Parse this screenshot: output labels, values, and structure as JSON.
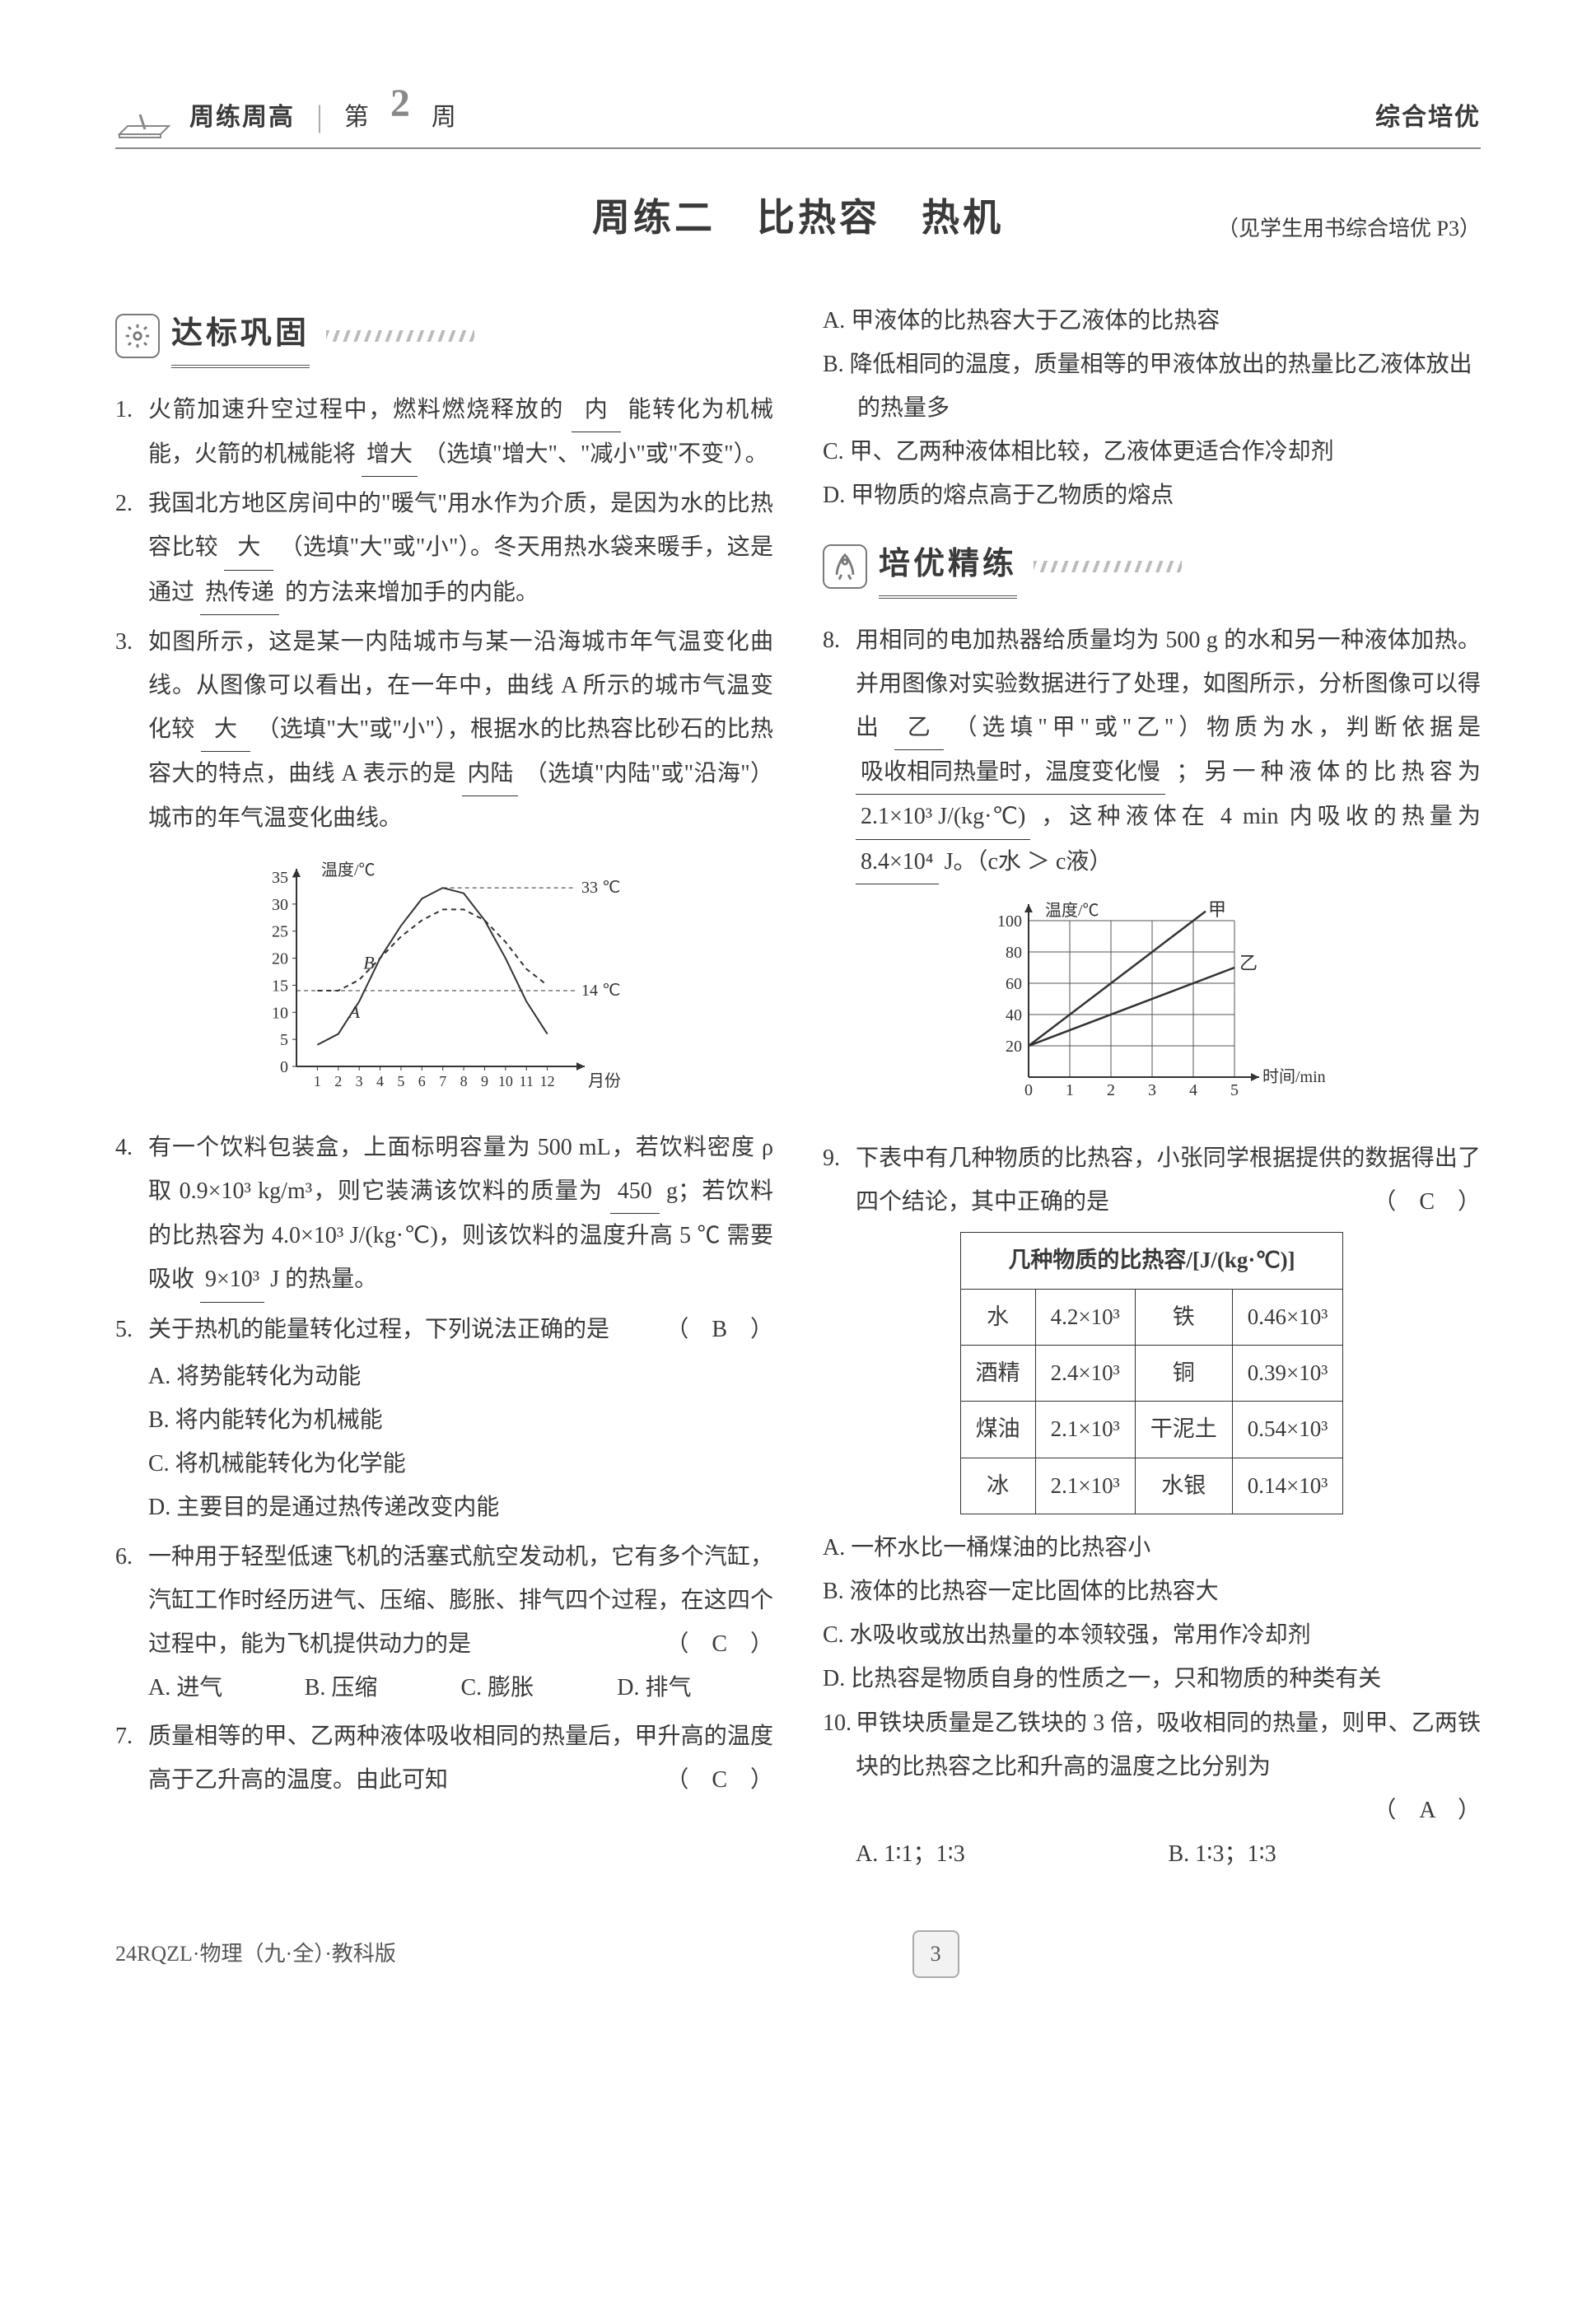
{
  "header": {
    "series": "周练周高",
    "week_prefix": "第",
    "week_number": "2",
    "week_suffix": "周",
    "right": "综合培优"
  },
  "title": {
    "main": "周练二　比热容　热机",
    "ref": "（见学生用书综合培优 P3）"
  },
  "section1": {
    "label": "达标巩固"
  },
  "section2": {
    "label": "培优精练"
  },
  "q1": {
    "num": "1.",
    "t1": "火箭加速升空过程中，燃料燃烧释放的",
    "b1": "内",
    "t2": "能转化为机械能，火箭的机械能将",
    "b2": "增大",
    "t3": "（选填\"增大\"、\"减小\"或\"不变\"）。"
  },
  "q2": {
    "num": "2.",
    "t1": "我国北方地区房间中的\"暖气\"用水作为介质，是因为水的比热容比较",
    "b1": "大",
    "t2": "（选填\"大\"或\"小\"）。冬天用热水袋来暖手，这是通过",
    "b2": "热传递",
    "t3": "的方法来增加手的内能。"
  },
  "q3": {
    "num": "3.",
    "t1": "如图所示，这是某一内陆城市与某一沿海城市年气温变化曲线。从图像可以看出，在一年中，曲线 A 所示的城市气温变化较",
    "b1": "大",
    "t2": "（选填\"大\"或\"小\"），根据水的比热容比砂石的比热容大的特点，曲线 A 表示的是",
    "b2": "内陆",
    "t3": "（选填\"内陆\"或\"沿海\"）城市的年气温变化曲线。"
  },
  "fig3": {
    "ylabel": "温度/℃",
    "xlabel": "月份",
    "yticks": [
      "0",
      "5",
      "10",
      "15",
      "20",
      "25",
      "30",
      "35"
    ],
    "xticks": [
      "1",
      "2",
      "3",
      "4",
      "5",
      "6",
      "7",
      "8",
      "9",
      "10",
      "11",
      "12"
    ],
    "anno_hi": "33 ℃",
    "anno_lo": "14 ℃",
    "labelA": "A",
    "labelB": "B",
    "axis_color": "#333333",
    "curveA_color": "#333333",
    "curveB_color": "#333333"
  },
  "q4": {
    "num": "4.",
    "t1": "有一个饮料包装盒，上面标明容量为 500 mL，若饮料密度 ρ 取 0.9×10³ kg/m³，则它装满该饮料的质量为",
    "b1": "450",
    "t2": "g；若饮料的比热容为 4.0×10³ J/(kg·℃)，则该饮料的温度升高 5 ℃ 需要吸收",
    "b2": "9×10³",
    "t3": "J 的热量。"
  },
  "q5": {
    "num": "5.",
    "stem": "关于热机的能量转化过程，下列说法正确的是",
    "ans": "（　B　）",
    "A": "A. 将势能转化为动能",
    "B": "B. 将内能转化为机械能",
    "C": "C. 将机械能转化为化学能",
    "D": "D. 主要目的是通过热传递改变内能"
  },
  "q6": {
    "num": "6.",
    "stem": "一种用于轻型低速飞机的活塞式航空发动机，它有多个汽缸，汽缸工作时经历进气、压缩、膨胀、排气四个过程，在这四个过程中，能为飞机提供动力的是",
    "ans": "（　C　）",
    "A": "A. 进气",
    "B": "B. 压缩",
    "C": "C. 膨胀",
    "D": "D. 排气"
  },
  "q7": {
    "num": "7.",
    "stem": "质量相等的甲、乙两种液体吸收相同的热量后，甲升高的温度高于乙升高的温度。由此可知",
    "ans": "（　C　）",
    "A": "A. 甲液体的比热容大于乙液体的比热容",
    "B": "B. 降低相同的温度，质量相等的甲液体放出的热量比乙液体放出的热量多",
    "C": "C. 甲、乙两种液体相比较，乙液体更适合作冷却剂",
    "D": "D. 甲物质的熔点高于乙物质的熔点"
  },
  "q8": {
    "num": "8.",
    "t1": "用相同的电加热器给质量均为 500 g 的水和另一种液体加热。并用图像对实验数据进行了处理，如图所示，分析图像可以得出",
    "b1": "乙",
    "t2": "（选填\"甲\"或\"乙\"）物质为水，判断依据是",
    "b2": "吸收相同热量时，温度变化慢",
    "t3": "；另一种液体的比热容为",
    "b3": "2.1×10³ J/(kg·℃)",
    "t4": "，这种液体在 4 min 内吸收的热量为",
    "b4": "8.4×10⁴",
    "t5": "J。（c水 ＞ c液）"
  },
  "fig8": {
    "ylabel": "温度/℃",
    "xlabel": "时间/min",
    "yticks": [
      "20",
      "40",
      "60",
      "80",
      "100"
    ],
    "xticks": [
      "0",
      "1",
      "2",
      "3",
      "4",
      "5"
    ],
    "label_jia": "甲",
    "label_yi": "乙",
    "axis_color": "#333333",
    "grid_color": "#555555"
  },
  "q9": {
    "num": "9.",
    "stem": "下表中有几种物质的比热容，小张同学根据提供的数据得出了四个结论，其中正确的是",
    "ans": "（　C　）",
    "A": "A. 一杯水比一桶煤油的比热容小",
    "B": "B. 液体的比热容一定比固体的比热容大",
    "C": "C. 水吸收或放出热量的本领较强，常用作冷却剂",
    "D": "D. 比热容是物质自身的性质之一，只和物质的种类有关"
  },
  "table9": {
    "caption": "几种物质的比热容/[J/(kg·℃)]",
    "rows": [
      [
        "水",
        "4.2×10³",
        "铁",
        "0.46×10³"
      ],
      [
        "酒精",
        "2.4×10³",
        "铜",
        "0.39×10³"
      ],
      [
        "煤油",
        "2.1×10³",
        "干泥土",
        "0.54×10³"
      ],
      [
        "冰",
        "2.1×10³",
        "水银",
        "0.14×10³"
      ]
    ]
  },
  "q10": {
    "num": "10.",
    "stem": "甲铁块质量是乙铁块的 3 倍，吸收相同的热量，则甲、乙两铁块的比热容之比和升高的温度之比分别为",
    "ans": "（　A　）",
    "A": "A. 1∶1；1∶3",
    "B": "B. 1∶3；1∶3"
  },
  "footer": {
    "left": "24RQZL·物理（九·全）·教科版",
    "page": "3"
  }
}
